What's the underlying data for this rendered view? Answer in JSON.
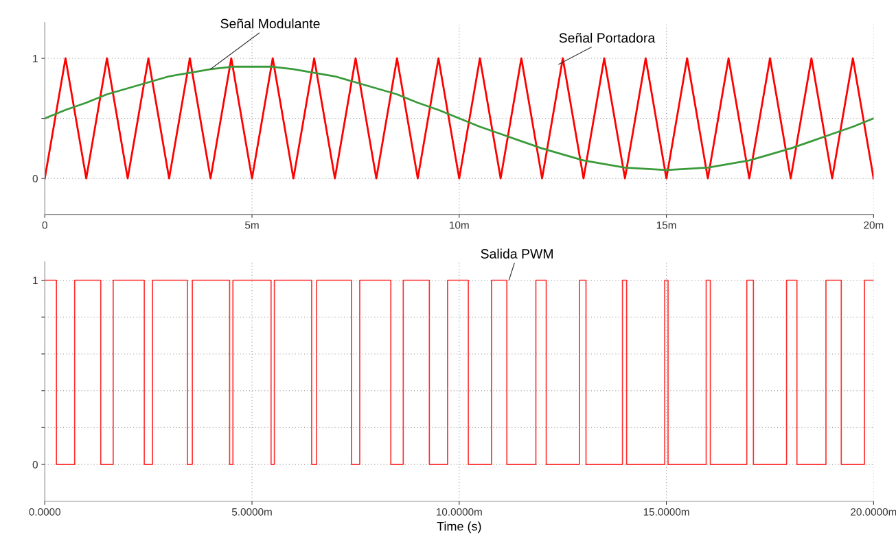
{
  "chart_data": [
    {
      "type": "line",
      "xlim": [
        0,
        20
      ],
      "xticks": [
        {
          "value": 0,
          "label": "0"
        },
        {
          "value": 5,
          "label": "5m"
        },
        {
          "value": 10,
          "label": "10m"
        },
        {
          "value": 15,
          "label": "15m"
        },
        {
          "value": 20,
          "label": "20m"
        }
      ],
      "ylim": [
        -0.3,
        1.3
      ],
      "yticks": [
        0,
        {
          "value": 0.5,
          "label": null
        },
        1
      ],
      "grid": true,
      "series": [
        {
          "type": "line",
          "color": "#ff0000",
          "x": [
            0,
            0.5,
            1,
            1.5,
            2,
            2.5,
            3,
            3.5,
            4,
            4.5,
            5,
            5.5,
            6,
            6.5,
            7,
            7.5,
            8,
            8.5,
            9,
            9.5,
            10,
            10.5,
            11,
            11.5,
            12,
            12.5,
            13,
            13.5,
            14,
            14.5,
            15,
            15.5,
            16,
            16.5,
            17,
            17.5,
            18,
            18.5,
            19,
            19.5,
            20
          ],
          "values": [
            0,
            1,
            0,
            1,
            0,
            1,
            0,
            1,
            0,
            1,
            0,
            1,
            0,
            1,
            0,
            1,
            0,
            1,
            0,
            1,
            0,
            1,
            0,
            1,
            0,
            1,
            0,
            1,
            0,
            1,
            0,
            1,
            0,
            1,
            0,
            1,
            0,
            1,
            0,
            1,
            0
          ]
        },
        {
          "type": "line",
          "color": "#3a9a3a",
          "x": [
            0,
            0.5,
            1,
            1.5,
            2,
            2.5,
            3,
            3.5,
            4,
            4.5,
            5,
            5.5,
            6,
            6.5,
            7,
            7.5,
            8,
            8.5,
            9,
            9.5,
            10,
            10.5,
            11,
            11.5,
            12,
            12.5,
            13,
            13.5,
            14,
            14.5,
            15,
            15.5,
            16,
            16.5,
            17,
            17.5,
            18,
            18.5,
            19,
            19.5,
            20
          ],
          "values": [
            0.5,
            0.57,
            0.63,
            0.7,
            0.75,
            0.8,
            0.85,
            0.88,
            0.91,
            0.93,
            0.93,
            0.93,
            0.91,
            0.88,
            0.85,
            0.8,
            0.75,
            0.7,
            0.63,
            0.57,
            0.5,
            0.43,
            0.37,
            0.31,
            0.25,
            0.2,
            0.15,
            0.12,
            0.09,
            0.08,
            0.07,
            0.08,
            0.09,
            0.12,
            0.15,
            0.2,
            0.25,
            0.31,
            0.37,
            0.43,
            0.5
          ]
        }
      ],
      "annotations": [
        {
          "text": "Señal Modulante",
          "x": 4,
          "y": 0.91
        },
        {
          "text": "Señal Portadora",
          "x": 12.4,
          "y": 0.95
        }
      ]
    },
    {
      "type": "step",
      "xlim": [
        0,
        20
      ],
      "xticks": [
        {
          "value": 0,
          "label": "0.0000"
        },
        {
          "value": 5,
          "label": "5.0000m"
        },
        {
          "value": 10,
          "label": "10.0000m"
        },
        {
          "value": 15,
          "label": "15.0000m"
        },
        {
          "value": 20,
          "label": "20.0000m"
        }
      ],
      "ylim": [
        -0.2,
        1.1
      ],
      "yticks": [
        0,
        {
          "value": 0.2,
          "label": null
        },
        {
          "value": 0.4,
          "label": null
        },
        {
          "value": 0.6,
          "label": null
        },
        {
          "value": 0.8,
          "label": null
        },
        1
      ],
      "grid": true,
      "xlabel": "Time (s)",
      "series": [
        {
          "type": "step",
          "color": "#ff3030",
          "x": [
            0,
            0.28,
            0.72,
            1.35,
            1.65,
            2.4,
            2.6,
            3.44,
            3.56,
            4.46,
            4.54,
            5.46,
            5.54,
            6.44,
            6.56,
            7.4,
            7.6,
            8.35,
            8.65,
            9.28,
            9.72,
            10.22,
            10.78,
            11.15,
            11.85,
            12.1,
            12.9,
            13.06,
            13.94,
            14.04,
            14.96,
            15.04,
            15.96,
            16.06,
            16.94,
            17.1,
            17.9,
            18.15,
            18.85,
            19.22,
            19.78,
            20
          ],
          "values": [
            1,
            0,
            1,
            0,
            1,
            0,
            1,
            0,
            1,
            0,
            1,
            0,
            1,
            0,
            1,
            0,
            1,
            0,
            1,
            0,
            1,
            0,
            1,
            0,
            1,
            0,
            1,
            0,
            1,
            0,
            1,
            0,
            1,
            0,
            1,
            0,
            1,
            0,
            1,
            0,
            1,
            1
          ]
        }
      ],
      "annotations": [
        {
          "text": "Salida PWM",
          "x": 11.2,
          "y": 1
        }
      ]
    }
  ]
}
